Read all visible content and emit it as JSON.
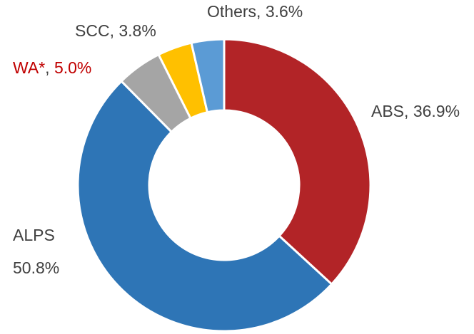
{
  "chart_data": {
    "type": "pie",
    "categories": [
      "ABS",
      "ALPS",
      "WA*",
      "SCC",
      "Others"
    ],
    "values": [
      36.9,
      50.8,
      5.0,
      3.8,
      3.6
    ],
    "value_labels": [
      "36.9%",
      "50.8%",
      "5.0%",
      "3.8%",
      "3.6%"
    ],
    "colors": [
      "#b22427",
      "#2e75b6",
      "#a5a5a5",
      "#ffc000",
      "#5b9bd5"
    ],
    "label_colors": [
      "#404040",
      "#404040",
      "#c00000",
      "#404040",
      "#404040"
    ],
    "donut": true
  }
}
